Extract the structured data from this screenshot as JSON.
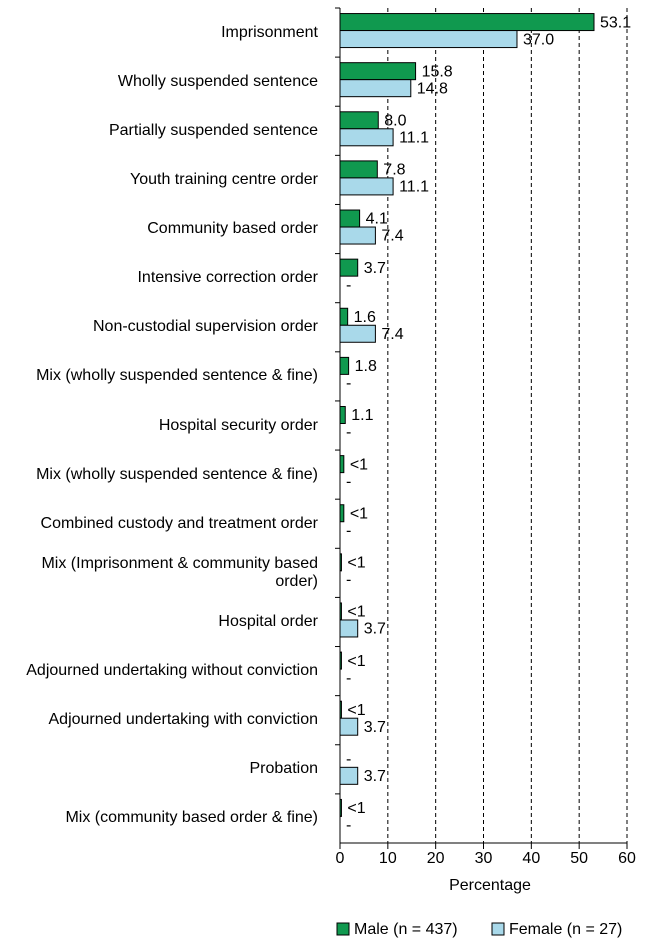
{
  "chart_data": {
    "type": "hbar",
    "categories": [
      "Imprisonment",
      "Wholly suspended sentence",
      "Partially suspended sentence",
      "Youth training centre order",
      "Community based order",
      "Intensive correction order",
      "Non-custodial supervision order",
      "Mix (wholly suspended sentence & fine)",
      "Hospital security order",
      "Mix (wholly suspended sentence & fine)",
      "Combined custody and treatment order",
      "Mix (Imprisonment & community based order)",
      "Hospital order",
      "Adjourned undertaking without conviction",
      "Adjourned undertaking with conviction",
      "Probation",
      "Mix (community based order & fine)"
    ],
    "series": [
      {
        "name": "Male (n = 437)",
        "color": "#10994f",
        "values": [
          53.1,
          15.8,
          8.0,
          7.8,
          4.1,
          3.7,
          1.6,
          1.8,
          1.1,
          0.8,
          0.8,
          0.3,
          0.3,
          0.3,
          0.3,
          0,
          0.3
        ],
        "value_labels": [
          "53.1",
          "15.8",
          "8.0",
          "7.8",
          "4.1",
          "3.7",
          "1.6",
          "1.8",
          "1.1",
          "<1",
          "<1",
          "<1",
          "<1",
          "<1",
          "<1",
          "-",
          "<1"
        ]
      },
      {
        "name": "Female (n = 27)",
        "color": "#a9d9ea",
        "values": [
          37.0,
          14.8,
          11.1,
          11.1,
          7.4,
          0,
          7.4,
          0,
          0,
          0,
          0,
          0,
          3.7,
          0,
          3.7,
          3.7,
          0
        ],
        "value_labels": [
          "37.0",
          "14.8",
          "11.1",
          "11.1",
          "7.4",
          "-",
          "7.4",
          "-",
          "-",
          "-",
          "-",
          "-",
          "3.7",
          "-",
          "3.7",
          "3.7",
          "-"
        ]
      }
    ],
    "xlabel": "Percentage",
    "xlim": [
      0,
      60
    ],
    "xticks": [
      0,
      10,
      20,
      30,
      40,
      50,
      60
    ],
    "grid": true
  }
}
